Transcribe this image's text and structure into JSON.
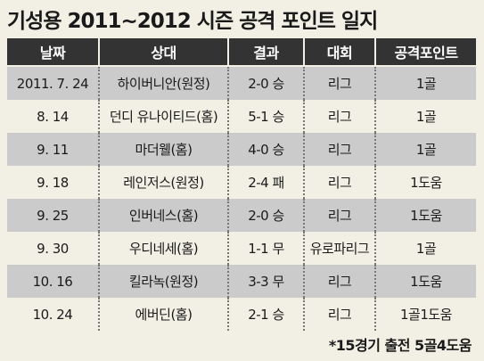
{
  "title": "기성용 2011~2012 시즌 공격 포인트 일지",
  "table": {
    "headers": [
      "날짜",
      "상대",
      "결과",
      "대회",
      "공격포인트"
    ],
    "rows": [
      [
        "2011. 7. 24",
        "하이버니안(원정)",
        "2-0 승",
        "리그",
        "1골"
      ],
      [
        "8. 14",
        "던디 유나이티드(홈)",
        "5-1 승",
        "리그",
        "1골"
      ],
      [
        "9. 11",
        "마더웰(홈)",
        "4-0 승",
        "리그",
        "1골"
      ],
      [
        "9. 18",
        "레인저스(원정)",
        "2-4 패",
        "리그",
        "1도움"
      ],
      [
        "9. 25",
        "인버네스(홈)",
        "2-0 승",
        "리그",
        "1도움"
      ],
      [
        "9. 30",
        "우디네세(홈)",
        "1-1 무",
        "유로파리그",
        "1골"
      ],
      [
        "10. 16",
        "킬라녹(원정)",
        "3-3 무",
        "리그",
        "1도움"
      ],
      [
        "10. 24",
        "에버딘(홈)",
        "2-1 승",
        "리그",
        "1골1도움"
      ]
    ]
  },
  "footnote": "*15경기 출전 5골4도움"
}
